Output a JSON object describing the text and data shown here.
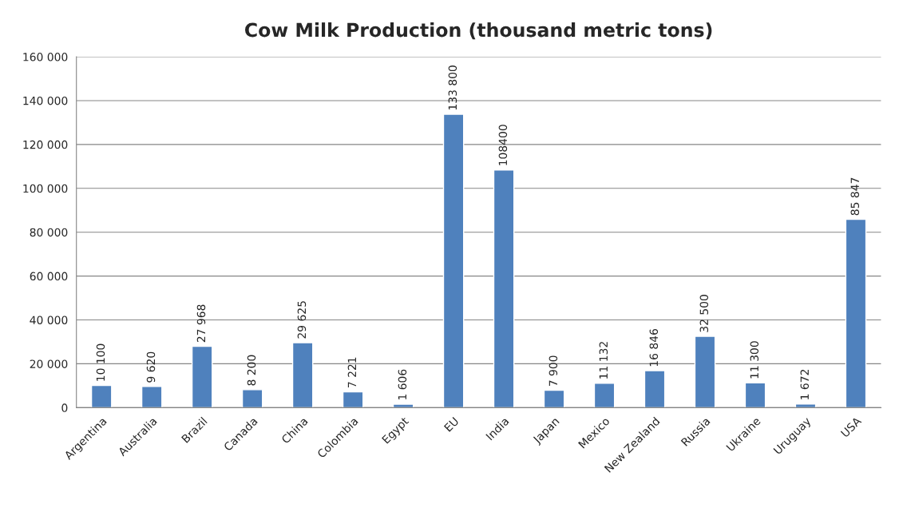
{
  "chart_data": {
    "type": "bar",
    "title": "Cow Milk Production (thousand metric tons)",
    "categories": [
      "Argentina",
      "Australia",
      "Brazil",
      "Canada",
      "China",
      "Colombia",
      "Egypt",
      "EU",
      "India",
      "Japan",
      "Mexico",
      "New Zealand",
      "Russia",
      "Ukraine",
      "Uruguay",
      "USA"
    ],
    "values": [
      10100,
      9620,
      27968,
      8200,
      29625,
      7221,
      1606,
      133800,
      108400,
      7900,
      11132,
      16846,
      32500,
      11300,
      1672,
      85847
    ],
    "value_labels": [
      "10 100",
      "9 620",
      "27 968",
      "8 200",
      "29 625",
      "7 221",
      "1 606",
      "133 800",
      "108400",
      "7 900",
      "11 132",
      "16 846",
      "32 500",
      "11 300",
      "1 672",
      "85 847"
    ],
    "color": "#4f81bd",
    "ylim": [
      0,
      160000
    ],
    "yticks": [
      {
        "value": 0,
        "label": "0"
      },
      {
        "value": 20000,
        "label": "20 000"
      },
      {
        "value": 40000,
        "label": "40 000"
      },
      {
        "value": 60000,
        "label": "60 000"
      },
      {
        "value": 80000,
        "label": "80 000"
      },
      {
        "value": 100000,
        "label": "100 000"
      },
      {
        "value": 120000,
        "label": "120 000"
      },
      {
        "value": 140000,
        "label": "140 000"
      },
      {
        "value": 160000,
        "label": "160 000"
      }
    ],
    "grid": "y"
  }
}
